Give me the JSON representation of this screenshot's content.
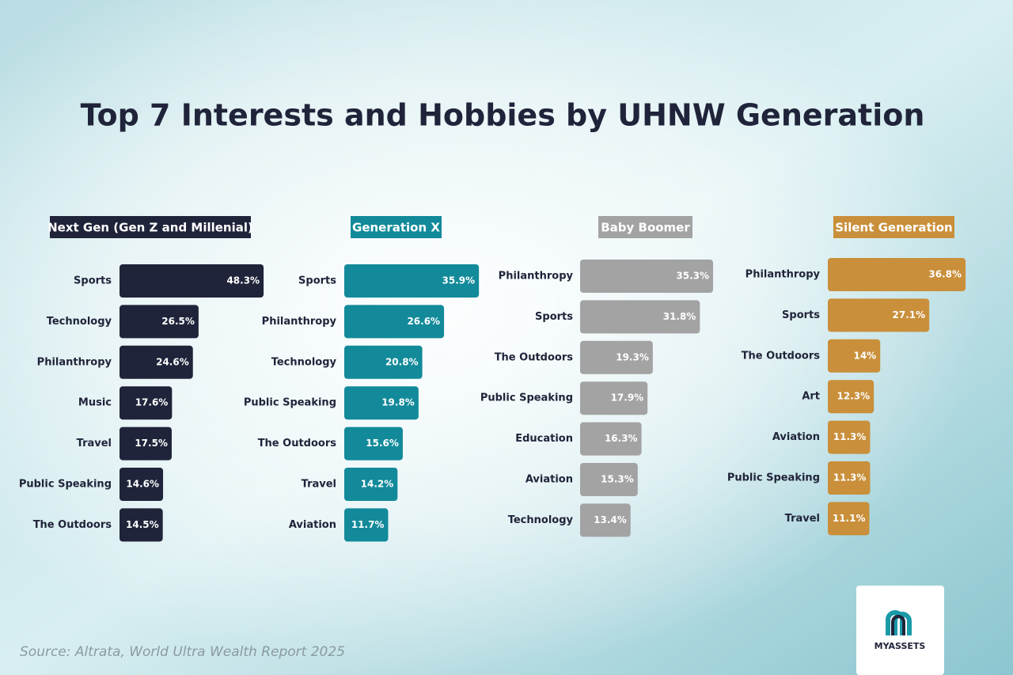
{
  "title": "Top 7 Interests and Hobbies by UHNW Generation",
  "source": "Source: Altrata, World Ultra Wealth Report 2025",
  "logo": "MYASSETS",
  "chart_data": [
    {
      "type": "bar",
      "title": "Next Gen (Gen Z and Millenial)",
      "color": "#20243a",
      "categories": [
        "Sports",
        "Technology",
        "Philanthropy",
        "Music",
        "Travel",
        "Public Speaking",
        "The Outdoors"
      ],
      "values": [
        48.3,
        26.5,
        24.6,
        17.6,
        17.5,
        14.6,
        14.5
      ],
      "value_labels": [
        "48.3%",
        "26.5%",
        "24.6%",
        "17.6%",
        "17.5%",
        "14.6%",
        "14.5%"
      ]
    },
    {
      "type": "bar",
      "title": "Generation X",
      "color": "#128a9a",
      "categories": [
        "Sports",
        "Philanthropy",
        "Technology",
        "Public Speaking",
        "The Outdoors",
        "Travel",
        "Aviation"
      ],
      "values": [
        35.9,
        26.6,
        20.8,
        19.8,
        15.6,
        14.2,
        11.7
      ],
      "value_labels": [
        "35.9%",
        "26.6%",
        "20.8%",
        "19.8%",
        "15.6%",
        "14.2%",
        "11.7%"
      ]
    },
    {
      "type": "bar",
      "title": "Baby Boomer",
      "color": "#a3a3a3",
      "categories": [
        "Philanthropy",
        "Sports",
        "The Outdoors",
        "Public Speaking",
        "Education",
        "Aviation",
        "Technology"
      ],
      "values": [
        35.3,
        31.8,
        19.3,
        17.9,
        16.3,
        15.3,
        13.4
      ],
      "value_labels": [
        "35.3%",
        "31.8%",
        "19.3%",
        "17.9%",
        "16.3%",
        "15.3%",
        "13.4%"
      ]
    },
    {
      "type": "bar",
      "title": "Silent Generation",
      "color": "#c98f3a",
      "categories": [
        "Philanthropy",
        "Sports",
        "The Outdoors",
        "Art",
        "Aviation",
        "Public Speaking",
        "Travel"
      ],
      "values": [
        36.8,
        27.1,
        14,
        12.3,
        11.3,
        11.3,
        11.1
      ],
      "value_labels": [
        "36.8%",
        "27.1%",
        "14%",
        "12.3%",
        "11.3%",
        "11.3%",
        "11.1%"
      ]
    }
  ]
}
